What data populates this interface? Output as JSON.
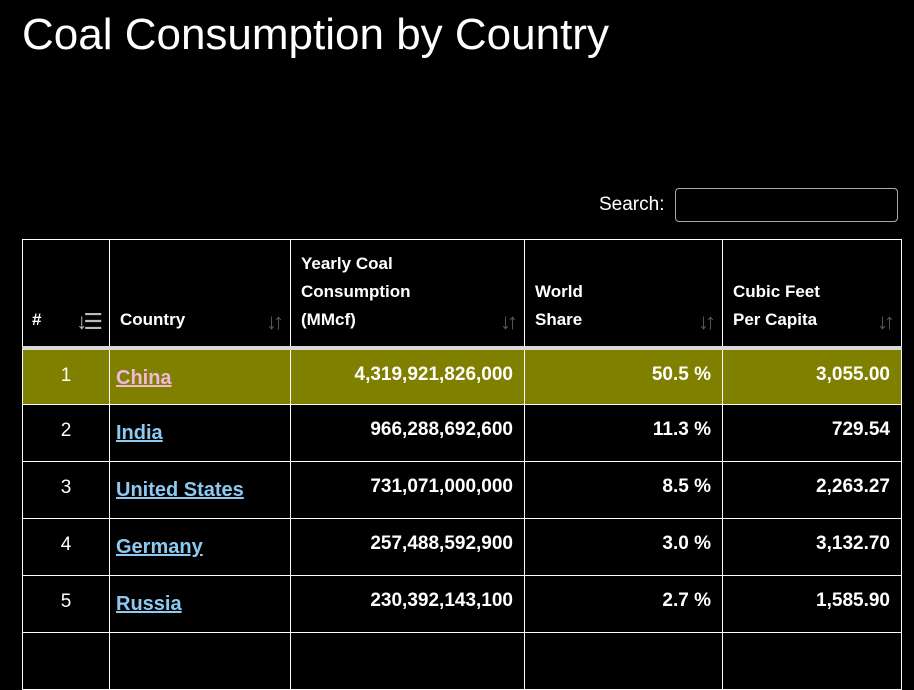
{
  "page": {
    "title": "Coal Consumption by Country"
  },
  "search": {
    "label": "Search:",
    "value": "",
    "placeholder": ""
  },
  "table": {
    "headers": {
      "rank": "#",
      "country": "Country",
      "yearly_line1": "Yearly Coal",
      "yearly_line2": "Consumption",
      "yearly_line3": "(MMcf)",
      "share_line1": "World",
      "share_line2": "Share",
      "percap_line1": "Cubic Feet",
      "percap_line2": "Per Capita"
    },
    "sort": {
      "active_column": "rank",
      "direction": "ascending"
    },
    "rows": [
      {
        "rank": "1",
        "country": "China",
        "yearly": "4,319,921,826,000",
        "share": "50.5 %",
        "per_capita": "3,055.00",
        "highlighted": true
      },
      {
        "rank": "2",
        "country": "India",
        "yearly": "966,288,692,600",
        "share": "11.3 %",
        "per_capita": "729.54",
        "highlighted": false
      },
      {
        "rank": "3",
        "country": "United States",
        "yearly": "731,071,000,000",
        "share": "8.5 %",
        "per_capita": "2,263.27",
        "highlighted": false
      },
      {
        "rank": "4",
        "country": "Germany",
        "yearly": "257,488,592,900",
        "share": "3.0 %",
        "per_capita": "3,132.70",
        "highlighted": false
      },
      {
        "rank": "5",
        "country": "Russia",
        "yearly": "230,392,143,100",
        "share": "2.7 %",
        "per_capita": "1,585.90",
        "highlighted": false
      }
    ]
  },
  "colors": {
    "background": "#000000",
    "highlight_row": "#808000",
    "link": "#8ec9f2",
    "link_visited_highlight": "#f2b8d8"
  },
  "icons": {
    "sort_active": "sort-numeric-ascending-icon",
    "sort_inactive": "sort-both-icon"
  }
}
